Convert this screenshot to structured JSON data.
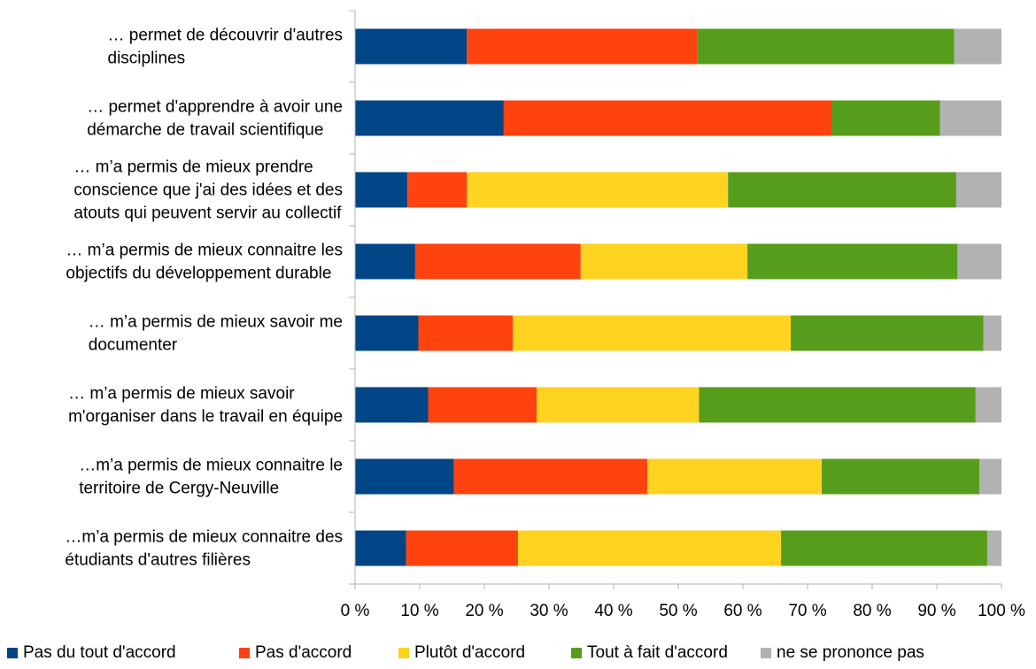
{
  "chart_data": {
    "type": "bar",
    "orientation": "horizontal",
    "stacked": "percent",
    "title": "",
    "xlabel": "",
    "ylabel": "",
    "xlim": [
      0,
      100
    ],
    "x_ticks": [
      "0 %",
      "10 %",
      "20 %",
      "30 %",
      "40 %",
      "50 %",
      "60 %",
      "70 %",
      "80 %",
      "90 %",
      "100 %"
    ],
    "grid": false,
    "legend_position": "bottom",
    "categories": [
      [
        "… permet de découvrir d'autres",
        "disciplines"
      ],
      [
        "… permet d'apprendre à avoir une",
        "démarche de travail scientifique"
      ],
      [
        "… m’a permis de mieux prendre",
        "conscience que j'ai des idées et des",
        "atouts qui peuvent servir au collectif"
      ],
      [
        "… m’a permis de mieux connaitre les",
        "objectifs du développement durable"
      ],
      [
        "… m’a permis de mieux savoir me",
        "documenter"
      ],
      [
        "… m’a permis de mieux savoir",
        "m'organiser dans le travail en équipe"
      ],
      [
        "…m’a permis de mieux connaitre le",
        "territoire de Cergy-Neuville"
      ],
      [
        "…m’a permis de mieux connaitre des",
        "étudiants d'autres filières"
      ]
    ],
    "series": [
      {
        "name": "Pas du tout d'accord",
        "color": "#004586",
        "values": [
          17.3,
          23.0,
          8.1,
          9.3,
          9.8,
          11.3,
          15.3,
          7.9
        ]
      },
      {
        "name": "Pas d'accord",
        "color": "#ff420e",
        "values": [
          35.6,
          50.7,
          9.2,
          25.6,
          14.6,
          16.8,
          29.9,
          17.3
        ]
      },
      {
        "name": "Plutôt d'accord",
        "color": "#ffd320",
        "values": [
          0,
          0,
          40.4,
          25.8,
          43.0,
          25.1,
          27.0,
          40.7
        ]
      },
      {
        "name": "Tout à fait d'accord",
        "color": "#579d1c",
        "values": [
          39.8,
          16.8,
          35.3,
          32.5,
          29.8,
          42.8,
          24.4,
          31.9
        ]
      },
      {
        "name": "ne se prononce pas",
        "color": "#b2b2b2",
        "values": [
          7.3,
          9.5,
          7.0,
          6.8,
          2.8,
          4.0,
          3.4,
          2.2
        ]
      }
    ]
  }
}
